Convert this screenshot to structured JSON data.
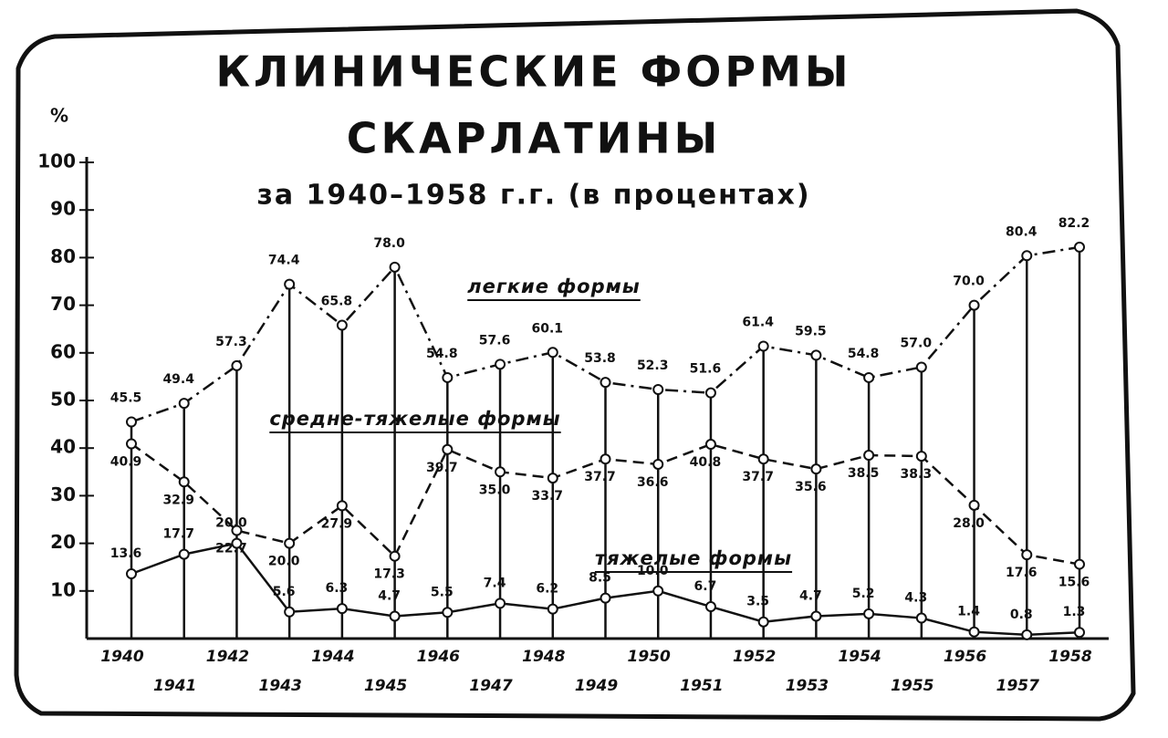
{
  "chart_data": {
    "type": "line",
    "title": "КЛИНИЧЕСКИЕ ФОРМЫ",
    "title_line2": "СКАРЛАТИНЫ",
    "subtitle": "за 1940–1958 г.г. (в процентах)",
    "y_label": "%",
    "categories": [
      "1940",
      "1941",
      "1942",
      "1943",
      "1944",
      "1945",
      "1946",
      "1947",
      "1948",
      "1949",
      "1950",
      "1951",
      "1952",
      "1953",
      "1954",
      "1955",
      "1956",
      "1957",
      "1958"
    ],
    "ylim": [
      0,
      100
    ],
    "yticks": [
      10,
      20,
      30,
      40,
      50,
      60,
      70,
      80,
      90,
      100
    ],
    "series": [
      {
        "name": "легкие формы",
        "color": "#111111",
        "dash": "dashdot",
        "values": [
          45.5,
          49.4,
          57.3,
          74.4,
          65.8,
          78.0,
          54.8,
          57.6,
          60.1,
          53.8,
          52.3,
          51.6,
          61.4,
          59.5,
          54.8,
          57.0,
          70.0,
          80.4,
          82.2
        ],
        "value_labels": [
          "45.5",
          "49.4",
          "57.3",
          "74.4",
          "65.8",
          "78.0",
          "54.8",
          "57.6",
          "60.1",
          "53.8",
          "52.3",
          "51.6",
          "61.4",
          "59.5",
          "54.8",
          "57.0",
          "70.0",
          "80.4",
          "82.2"
        ]
      },
      {
        "name": "средне-тяжелые формы",
        "color": "#111111",
        "dash": "dashed",
        "values": [
          40.9,
          32.9,
          22.7,
          20.0,
          27.9,
          17.3,
          39.7,
          35.0,
          33.7,
          37.7,
          36.6,
          40.8,
          37.7,
          35.6,
          38.5,
          38.3,
          28.0,
          17.6,
          15.6
        ],
        "value_labels": [
          "40.9",
          "32.9",
          "22.7",
          "20.0",
          "27.9",
          "17.3",
          "39.7",
          "35.0",
          "33.7",
          "37.7",
          "36.6",
          "40.8",
          "37.7",
          "35.6",
          "38.5",
          "38.3",
          "28.0",
          "17.6",
          "15.6"
        ]
      },
      {
        "name": "тяжелые формы",
        "color": "#111111",
        "dash": "solid",
        "values": [
          13.6,
          17.7,
          20.0,
          5.6,
          6.3,
          4.7,
          5.5,
          7.4,
          6.2,
          8.5,
          10.0,
          6.7,
          3.5,
          4.7,
          5.2,
          4.3,
          1.4,
          0.8,
          1.3
        ],
        "value_labels": [
          "13.6",
          "17.7",
          "20.0",
          "5.6",
          "6.3",
          "4.7",
          "5.5",
          "7.4",
          "6.2",
          "8.5",
          "10.0",
          "6.7",
          "3.5",
          "4.7",
          "5.2",
          "4.3",
          "1.4",
          "0.8",
          "1.3"
        ]
      }
    ]
  }
}
